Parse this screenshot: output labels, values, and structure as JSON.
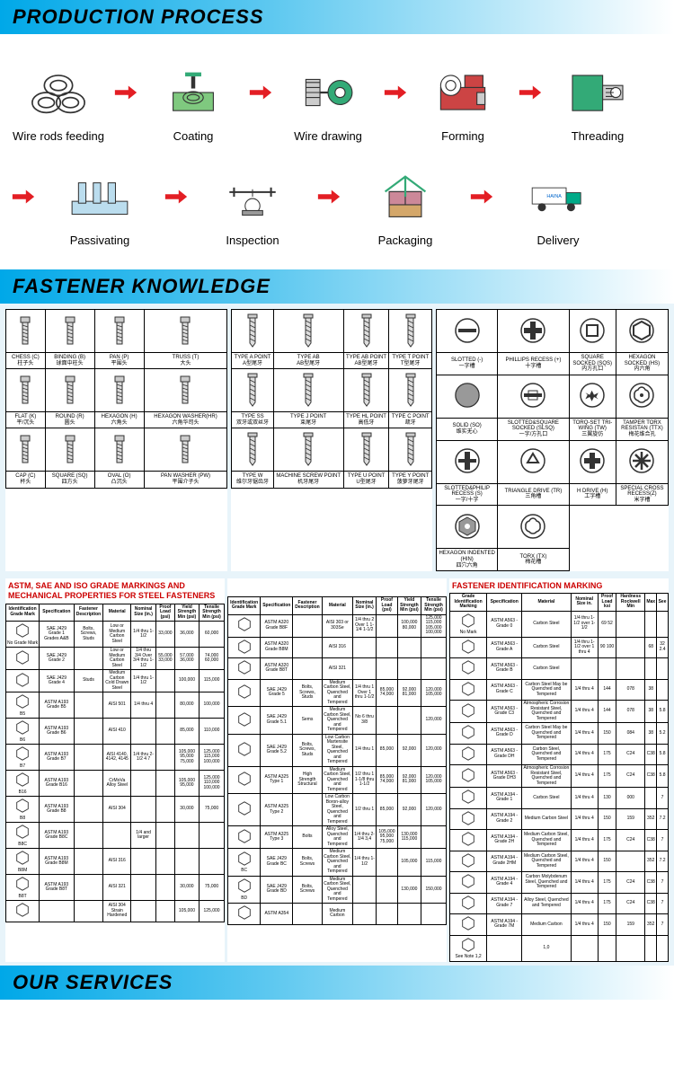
{
  "headers": {
    "h1": "PRODUCTION PROCESS",
    "h2": "FASTENER KNOWLEDGE",
    "h3": "OUR SERVICES"
  },
  "process": {
    "row1": [
      "Wire rods feeding",
      "Coating",
      "Wire drawing",
      "Forming",
      "Threading"
    ],
    "row2": [
      "Passivating",
      "Inspection",
      "Packaging",
      "Delivery"
    ]
  },
  "heads": {
    "cols": [
      [
        "CHESS (C)",
        "柱子头",
        "BINDING (B)",
        "球面中柱头",
        "PAN (P)",
        "平围头",
        "TRUSS (T)",
        "大头"
      ],
      [
        "FLAT (K)",
        "平/沉头",
        "ROUND (R)",
        "圆头",
        "HEXAGON (H)",
        "六角头",
        "HEXAGON WASHER(HR)",
        "六角华司头"
      ],
      [
        "CAP (C)",
        "杯头",
        "SQUARE (SQ)",
        "四方头",
        "OVAL (O)",
        "凸沉头",
        "PAN WASHER (PW)",
        "平围介子头"
      ]
    ]
  },
  "points": {
    "cols": [
      [
        "TYPE A POINT",
        "A型尾牙",
        "TYPE AB",
        "AB型尾牙",
        "TYPE AB POINT",
        "AB型尾牙",
        "TYPE T POINT",
        "T型尾牙"
      ],
      [
        "TYPE SS",
        "双牙或双丝牙",
        "TYPE J POINT",
        "束尾牙",
        "TYPE HL POINT",
        "高低牙",
        "TYPE C POINT",
        "疏牙"
      ],
      [
        "TYPE W",
        "维尔牙锯齿牙",
        "MACHINE SCREW POINT",
        "机牙尾牙",
        "TYPE U POINT",
        "U型尾牙",
        "TYPE Y POINT",
        "菠萝牙尾牙"
      ]
    ]
  },
  "drives": {
    "cols": [
      [
        "SLOTTED (-)",
        "一字槽",
        "PHILLIPS RECESS (+)",
        "十字槽",
        "SQUARE SOCKED (SQS)",
        "内方孔口",
        "HEXAGON SOCKED (HS)",
        "内六角"
      ],
      [
        "SOLID (SO)",
        "维实无心",
        "SLOTTED&SQUARE SOCKED (SLSQ)",
        "一字/方孔口",
        "TORQ-SET TRI-WING (TW)",
        "三翼旋仿",
        "TAMPER TORX RESISTAN (TTX)",
        "梅花维合孔"
      ],
      [
        "SLOTTED&PHILIP RECESS (S)",
        "一字/十字",
        "TRIANGLE DRIVE (TR)",
        "三角槽",
        "H DRIVE (H)",
        "工字槽",
        "SPECIAL CROSS RECESS(Z)",
        "米字槽"
      ],
      [
        "HEXAGON INDENTED (HIN)",
        "四穴六角",
        "TORX (TX)",
        "梅花槽",
        "",
        ""
      ]
    ]
  },
  "mech": {
    "title": "ASTM, SAE AND ISO GRADE MARKINGS AND MECHANICAL PROPERTIES FOR STEEL FASTENERS",
    "title2": "FASTENER IDENTIFICATION MARKING",
    "h1": [
      "Identification Grade Mark",
      "Specification",
      "Fastener Description",
      "Material",
      "Nominal Size (in.)",
      "Proof Load (psi)",
      "Yield Strength Min (psi)",
      "Tensile Strength Min (psi)"
    ],
    "h2": [
      "Grade Identification Marking",
      "Specification",
      "Material",
      "Nominal Size in.",
      "Proof Load ksi",
      "Hardness Rockwell Min",
      "Max",
      "See"
    ],
    "r1": [
      [
        "No Grade Mark",
        "SAE J429 Grade 1 Grades A&B",
        "Bolts, Screws, Studs",
        "Low or Medium Carbon Steel",
        "1/4 thru 1-1/2",
        "33,000",
        "36,000",
        "60,000"
      ],
      [
        "",
        "SAE J429 Grade 2",
        "",
        "Low or Medium Carbon Steel",
        "1/4 thru 3/4 Over 3/4 thru 1-1/2",
        "55,000 33,000",
        "57,000 36,000",
        "74,000 60,000"
      ],
      [
        "",
        "SAE J429 Grade 4",
        "Studs",
        "Medium Carbon Cold Drawn Steel",
        "1/4 thru 1-1/2",
        "",
        "100,000",
        "115,000"
      ],
      [
        "B5",
        "ASTM A193 Grade B5",
        "",
        "AISI 501",
        "1/4 thru 4",
        "",
        "80,000",
        "100,000"
      ],
      [
        "B6",
        "ASTM A193 Grade B6",
        "",
        "AISI 410",
        "",
        "",
        "85,000",
        "110,000"
      ],
      [
        "B7",
        "ASTM A193 Grade B7",
        "",
        "AISI 4140, 4142, 4145",
        "1/4 thru 2-1/2 4 7",
        "",
        "105,000 95,000 75,000",
        "125,000 115,000 100,000"
      ],
      [
        "B16",
        "ASTM A193 Grade B16",
        "",
        "CrMoVa Alloy Steel",
        "",
        "",
        "105,000 95,000",
        "125,000 110,000 100,000"
      ],
      [
        "B8",
        "ASTM A193 Grade B8",
        "",
        "AISI 304",
        "",
        "",
        "30,000",
        "75,000"
      ],
      [
        "B8C",
        "ASTM A193 Grade B8C",
        "",
        "",
        "1/4 and larger",
        "",
        "",
        ""
      ],
      [
        "B8M",
        "ASTM A193 Grade B8M",
        "",
        "AISI 316",
        "",
        "",
        "",
        ""
      ],
      [
        "B8T",
        "ASTM A193 Grade B8T",
        "",
        "AISI 321",
        "",
        "",
        "30,000",
        "75,000"
      ],
      [
        "",
        "",
        "",
        "AISI 304 Strain Hardened",
        "",
        "",
        "105,000",
        "125,000"
      ]
    ],
    "r2": [
      [
        "",
        "ASTM A320 Grade B8F",
        "",
        "AISI 303 or 303Se",
        "1/4 thru 2 Over 1 1-1/4 1-1/2",
        "",
        "100,000 80,000",
        "125,000 115,000 105,000 100,000"
      ],
      [
        "",
        "ASTM A320 Grade B8M",
        "",
        "AISI 316",
        "",
        "",
        "",
        ""
      ],
      [
        "",
        "ASTM A320 Grade B8T",
        "",
        "AISI 321",
        "",
        "",
        "",
        ""
      ],
      [
        "",
        "SAE J429 Grade 5",
        "Bolts, Screws, Studs",
        "Medium Carbon Steel, Quenched and Tempered",
        "1/4 thru 1 Over 1 thru 1-1/2",
        "85,000 74,000",
        "92,000 81,000",
        "120,000 105,000"
      ],
      [
        "",
        "SAE J429 Grade 5.1",
        "Sems",
        "Medium Carbon Steel, Quenched and Tempered",
        "No 6 thru 3/8",
        "",
        "",
        "120,000"
      ],
      [
        "",
        "SAE J429 Grade 5.2",
        "Bolts, Screws, Studs",
        "Low Carbon Martensite Steel, Quenched and Tempered",
        "1/4 thru 1",
        "85,000",
        "92,000",
        "120,000"
      ],
      [
        "",
        "ASTM A325 Type 1",
        "High Strength Structural",
        "Medium Carbon Steel, Quenched and Tempered",
        "1/2 thru 1 1-1/8 thru 1-1/2",
        "85,000 74,000",
        "92,000 81,000",
        "120,000 105,000"
      ],
      [
        "",
        "ASTM A325 Type 2",
        "",
        "Low Carbon Boron-alloy Steel, Quenched and Tempered",
        "1/2 thru 1",
        "85,000",
        "92,000",
        "120,000"
      ],
      [
        "",
        "ASTM A325 Type 3",
        "Bolts",
        "Alloy Steel, Quenched and Tempered",
        "1/4 thru 2-1/4 3,4",
        "105,000 95,000 75,000",
        "130,000 115,000",
        ""
      ],
      [
        "BC",
        "SAE J429 Grade BC",
        "Bolts, Screws",
        "Medium Carbon Steel, Quenched and Tempered",
        "1/4 thru 1-1/2",
        "",
        "105,000",
        "115,000"
      ],
      [
        "BD",
        "SAE J429 Grade BD",
        "Bolts, Screws",
        "Medium Carbon Steel, Quenched and Tempered",
        "",
        "",
        "130,000",
        "150,000"
      ],
      [
        "",
        "ASTM A354",
        "",
        "Medium Carbon",
        "",
        "",
        "",
        ""
      ]
    ],
    "r3": [
      [
        "No Mark",
        "ASTM A563 - Grade 0",
        "Carbon Steel",
        "1/4 thru 1-1/2 over 1-1/2",
        "69 52",
        "",
        "",
        ""
      ],
      [
        "",
        "ASTM A563 - Grade A",
        "Carbon Steel",
        "1/4 thru 1-1/2 over 1 thru 4",
        "90 100",
        "",
        "68",
        "32 2.4"
      ],
      [
        "",
        "ASTM A563 - Grade B",
        "Carbon Steel",
        "",
        "",
        "",
        "",
        ""
      ],
      [
        "",
        "ASTM A563 - Grade C",
        "Carbon Steel May be Quenched and Tempered",
        "1/4 thru 4",
        "144",
        "078",
        "38",
        ""
      ],
      [
        "",
        "ASTM A563 - Grade C3",
        "Atmospheric Corrosion Resistant Steel, Quenched and Tempered",
        "1/4 thru 4",
        "144",
        "078",
        "38",
        "5.8"
      ],
      [
        "",
        "ASTM A563 - Grade D",
        "Carbon Steel May be Quenched and Tempered",
        "1/4 thru 4",
        "150",
        "084",
        "38",
        "5.2"
      ],
      [
        "",
        "ASTM A563 - Grade DH",
        "Carbon Steel, Quenched and Tempered",
        "1/4 thru 4",
        "175",
        "C24",
        "C38",
        "5.8"
      ],
      [
        "",
        "ASTM A563 - Grade DH3",
        "Atmospheric Corrosion Resistant Steel, Quenched and Tempered",
        "1/4 thru 4",
        "175",
        "C24",
        "C38",
        "5.8"
      ],
      [
        "",
        "ASTM A194 - Grade 1",
        "Carbon Steel",
        "1/4 thru 4",
        "130",
        "000",
        "",
        "7"
      ],
      [
        "",
        "ASTM A194 - Grade 2",
        "Medium Carbon Steel",
        "1/4 thru 4",
        "150",
        "159",
        "352",
        "7.2"
      ],
      [
        "",
        "ASTM A194 - Grade 2H",
        "Medium Carbon Steel, Quenched and Tempered",
        "1/4 thru 4",
        "175",
        "C24",
        "C38",
        "7"
      ],
      [
        "",
        "ASTM A194 - Grade 2HM",
        "Medium Carbon Steel, Quenched and Tempered",
        "1/4 thru 4",
        "150",
        "",
        "352",
        "7.2"
      ],
      [
        "",
        "ASTM A194 - Grade 4",
        "Carbon Molybdenum Steel, Quenched and Tempered",
        "1/4 thru 4",
        "175",
        "C24",
        "C38",
        "7"
      ],
      [
        "",
        "ASTM A194 - Grade 7",
        "Alloy Steel, Quenched and Tempered",
        "1/4 thru 4",
        "175",
        "C24",
        "C38",
        "7"
      ],
      [
        "",
        "ASTM A194 - Grade 7M",
        "Medium Carbon",
        "1/4 thru 4",
        "150",
        "159",
        "352",
        "7"
      ],
      [
        "See Note 1,2",
        "",
        "1,0",
        "",
        "",
        "",
        "",
        ""
      ]
    ]
  },
  "colors": {
    "arrow": "#e31e24",
    "hdr1": "#00a8e8",
    "hdr2": "#5dc8f0"
  }
}
